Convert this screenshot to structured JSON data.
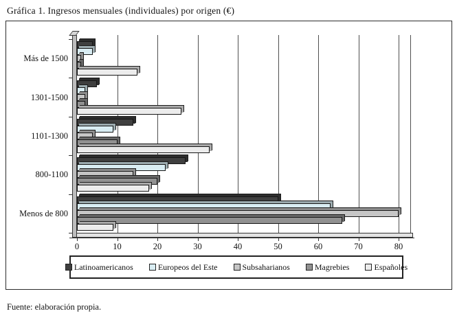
{
  "title": "Gráfica 1. Ingresos mensuales (individuales) por origen (€)",
  "source_note": "Fuente: elaboración propia.",
  "chart_data": {
    "type": "bar",
    "orientation": "horizontal",
    "title": "Gráfica 1. Ingresos mensuales (individuales) por origen (€)",
    "categories": [
      "Más de 1500",
      "1301-1500",
      "1101-1300",
      "800-1100",
      "Menos de 800"
    ],
    "series": [
      {
        "name": "Latinoamericanos",
        "color": "#3f3f3f",
        "values": [
          4,
          5,
          14,
          27,
          50
        ]
      },
      {
        "name": "Europeos del Este",
        "color": "#d9edf3",
        "values": [
          4,
          2,
          9,
          22,
          63
        ]
      },
      {
        "name": "Subsaharianos",
        "color": "#c6c6c6",
        "values": [
          1,
          2,
          4,
          14,
          80
        ]
      },
      {
        "name": "Magrebies",
        "color": "#919191",
        "values": [
          1,
          2,
          10,
          20,
          66
        ]
      },
      {
        "name": "Españoles",
        "color": "#ececec",
        "values": [
          15,
          26,
          33,
          18,
          9
        ]
      }
    ],
    "xlabel": "",
    "ylabel": "",
    "xlim": [
      0,
      80
    ],
    "xticks": [
      0,
      10,
      20,
      30,
      40,
      50,
      60,
      70,
      80
    ],
    "grid": true,
    "legend_position": "bottom"
  },
  "styles": {
    "bar_border": "#161616",
    "grid_color": "#4f4f4f",
    "wall_color": "#bdbdbd",
    "floor_color": "#e2e2e2",
    "frame_border": "#2b2b2b"
  }
}
